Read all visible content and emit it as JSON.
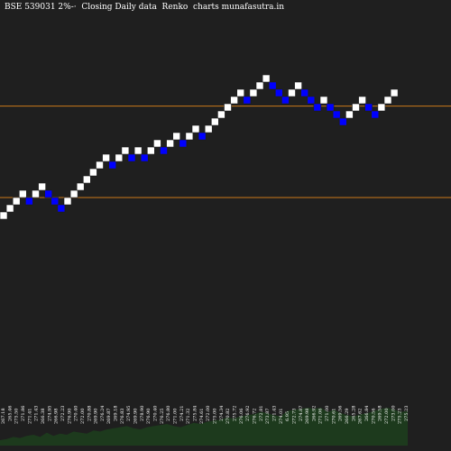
{
  "header": {
    "title": "BSE 539031 2%-·  Closing Daily data  Renko  charts munafasutra.in"
  },
  "chart_data": {
    "type": "renko",
    "hlines": [
      {
        "price": 281.5,
        "color": "#cc7a1a"
      },
      {
        "price": 262.5,
        "color": "#cc7a1a"
      }
    ],
    "up_color": "#ffffff",
    "down_color": "#0000ff",
    "volume_color": "#1d3a1d",
    "ylim": [
      0,
      290
    ],
    "bricks": [
      {
        "dir": "up",
        "v": 259.5
      },
      {
        "dir": "up",
        "v": 261.0
      },
      {
        "dir": "up",
        "v": 262.5
      },
      {
        "dir": "up",
        "v": 264.0
      },
      {
        "dir": "down",
        "v": 262.5
      },
      {
        "dir": "up",
        "v": 264.0
      },
      {
        "dir": "up",
        "v": 265.5
      },
      {
        "dir": "down",
        "v": 264.0
      },
      {
        "dir": "down",
        "v": 262.5
      },
      {
        "dir": "down",
        "v": 261.0
      },
      {
        "dir": "up",
        "v": 262.5
      },
      {
        "dir": "up",
        "v": 264.0
      },
      {
        "dir": "up",
        "v": 265.5
      },
      {
        "dir": "up",
        "v": 267.0
      },
      {
        "dir": "up",
        "v": 268.5
      },
      {
        "dir": "up",
        "v": 270.0
      },
      {
        "dir": "up",
        "v": 271.5
      },
      {
        "dir": "down",
        "v": 270.0
      },
      {
        "dir": "up",
        "v": 271.5
      },
      {
        "dir": "up",
        "v": 273.0
      },
      {
        "dir": "down",
        "v": 271.5
      },
      {
        "dir": "up",
        "v": 273.0
      },
      {
        "dir": "down",
        "v": 271.5
      },
      {
        "dir": "up",
        "v": 273.0
      },
      {
        "dir": "up",
        "v": 274.5
      },
      {
        "dir": "down",
        "v": 273.0
      },
      {
        "dir": "up",
        "v": 274.5
      },
      {
        "dir": "up",
        "v": 276.0
      },
      {
        "dir": "down",
        "v": 274.5
      },
      {
        "dir": "up",
        "v": 276.0
      },
      {
        "dir": "up",
        "v": 277.5
      },
      {
        "dir": "down",
        "v": 276.0
      },
      {
        "dir": "up",
        "v": 277.5
      },
      {
        "dir": "up",
        "v": 279.0
      },
      {
        "dir": "up",
        "v": 280.5
      },
      {
        "dir": "up",
        "v": 282.0
      },
      {
        "dir": "up",
        "v": 283.5
      },
      {
        "dir": "up",
        "v": 285.0
      },
      {
        "dir": "down",
        "v": 283.5
      },
      {
        "dir": "up",
        "v": 285.0
      },
      {
        "dir": "up",
        "v": 286.5
      },
      {
        "dir": "up",
        "v": 288.0
      },
      {
        "dir": "down",
        "v": 286.5
      },
      {
        "dir": "down",
        "v": 285.0
      },
      {
        "dir": "down",
        "v": 283.5
      },
      {
        "dir": "up",
        "v": 285.0
      },
      {
        "dir": "up",
        "v": 286.5
      },
      {
        "dir": "down",
        "v": 285.0
      },
      {
        "dir": "down",
        "v": 283.5
      },
      {
        "dir": "down",
        "v": 282.0
      },
      {
        "dir": "up",
        "v": 283.5
      },
      {
        "dir": "down",
        "v": 282.0
      },
      {
        "dir": "down",
        "v": 280.5
      },
      {
        "dir": "down",
        "v": 279.0
      },
      {
        "dir": "up",
        "v": 280.5
      },
      {
        "dir": "up",
        "v": 282.0
      },
      {
        "dir": "up",
        "v": 283.5
      },
      {
        "dir": "down",
        "v": 282.0
      },
      {
        "dir": "down",
        "v": 280.5
      },
      {
        "dir": "up",
        "v": 282.0
      },
      {
        "dir": "up",
        "v": 283.5
      },
      {
        "dir": "up",
        "v": 285.0
      }
    ],
    "labels": [
      "267.18",
      "265.46",
      "275.50",
      "271.86",
      "271.41",
      "271.43",
      "266.38",
      "274.95",
      "266.98",
      "272.23",
      "276.90",
      "270.40",
      "272.00",
      "270.88",
      "269.90",
      "276.24",
      "269.87",
      "269.18",
      "276.83",
      "274.95",
      "269.90",
      "278.90",
      "276.90",
      "270.40",
      "276.25",
      "276.80",
      "271.00",
      "274.21",
      "271.32",
      "275.84",
      "274.61",
      "272.00",
      "275.00",
      "274.34",
      "270.82",
      "275.72",
      "276.06",
      "276.92",
      "276.72",
      "272.81",
      "273.87",
      "271.43",
      "274.01",
      "6.95",
      "272.73",
      "274.87",
      "269.98",
      "266.92",
      "271.06",
      "271.00",
      "270.61",
      "269.56",
      "266.29",
      "265.28",
      "267.62",
      "266.84",
      "270.56",
      "269.58",
      "272.00",
      "273.00",
      "275.23",
      "275.23"
    ],
    "volumes": [
      5,
      6,
      8,
      7,
      9,
      10,
      8,
      12,
      9,
      11,
      10,
      13,
      12,
      11,
      14,
      13,
      15,
      16,
      17,
      18,
      16,
      15,
      17,
      18,
      19,
      20,
      18,
      17,
      19,
      21,
      20,
      22,
      23,
      24,
      26,
      25,
      27,
      28,
      29,
      31,
      30,
      28,
      27,
      32,
      33,
      34,
      35,
      34,
      35,
      31,
      33,
      30,
      28,
      27,
      29,
      30,
      32,
      34,
      35,
      33,
      31,
      32
    ],
    "title": "BSE 539031 2%-·  Closing Daily data  Renko  charts munafasutra.in"
  }
}
